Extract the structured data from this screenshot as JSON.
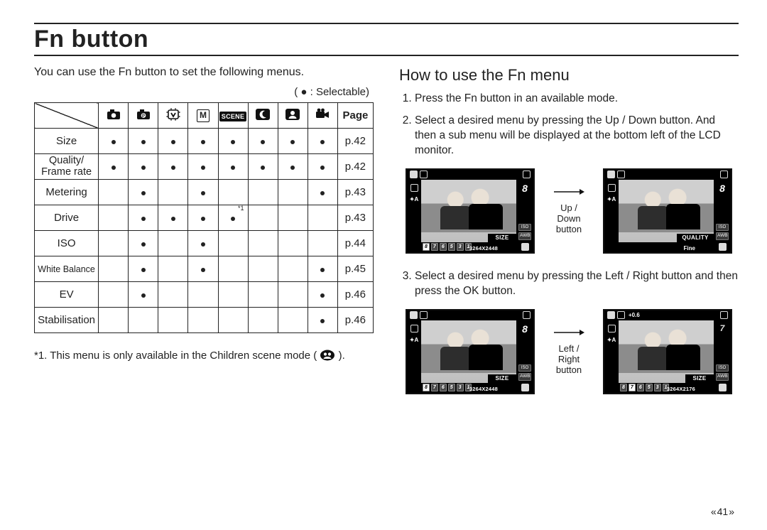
{
  "title": "Fn button",
  "intro": "You can use the Fn button to set the following menus.",
  "legend": "(  ● : Selectable)",
  "table": {
    "page_header": "Page",
    "rows": [
      {
        "label": "Size",
        "cells": [
          "•",
          "•",
          "•",
          "•",
          "•",
          "•",
          "•",
          "•"
        ],
        "page": "p.42"
      },
      {
        "label": "Quality/\nFrame rate",
        "cells": [
          "•",
          "•",
          "•",
          "•",
          "•",
          "•",
          "•",
          "•"
        ],
        "page": "p.42"
      },
      {
        "label": "Metering",
        "cells": [
          "",
          "•",
          "",
          "•",
          "",
          "",
          "",
          "•"
        ],
        "page": "p.43"
      },
      {
        "label": "Drive",
        "cells": [
          "",
          "•",
          "•",
          "•",
          "*1",
          "",
          "",
          ""
        ],
        "page": "p.43"
      },
      {
        "label": "ISO",
        "cells": [
          "",
          "•",
          "",
          "•",
          "",
          "",
          "",
          ""
        ],
        "page": "p.44"
      },
      {
        "label": "White Balance",
        "cells": [
          "",
          "•",
          "",
          "•",
          "",
          "",
          "",
          "•"
        ],
        "page": "p.45",
        "small": true
      },
      {
        "label": "EV",
        "cells": [
          "",
          "•",
          "",
          "",
          "",
          "",
          "",
          "•"
        ],
        "page": "p.46"
      },
      {
        "label": "Stabilisation",
        "cells": [
          "",
          "",
          "",
          "",
          "",
          "",
          "",
          "•"
        ],
        "page": "p.46"
      }
    ],
    "mode_icons": [
      "auto",
      "program",
      "asr",
      "m",
      "scene",
      "night",
      "portrait",
      "movie"
    ]
  },
  "footnote": "*1. This menu is only available in the Children scene mode (        ).",
  "right": {
    "heading": "How to use the Fn menu",
    "steps": [
      "Press the Fn button in an available mode.",
      "Select a desired menu by pressing the Up / Down button. And then a sub menu will be displayed at the bottom left of the LCD monitor.",
      "Select a desired menu by pressing the Left / Right button and then press the OK button."
    ],
    "arrows": [
      "Up / Down\nbutton",
      "Left / Right\nbutton"
    ],
    "lcd": {
      "label_size": "SIZE",
      "label_quality": "QUALITY",
      "iso": "ISO",
      "awb": "AWB",
      "fine": "Fine",
      "eight": "8",
      "ev": "+0.6",
      "res1": "3264X2448",
      "res2": "3264X2176",
      "sizes": [
        "8",
        "7",
        "6",
        "5",
        "3",
        "1"
      ]
    }
  },
  "page_number": "41"
}
